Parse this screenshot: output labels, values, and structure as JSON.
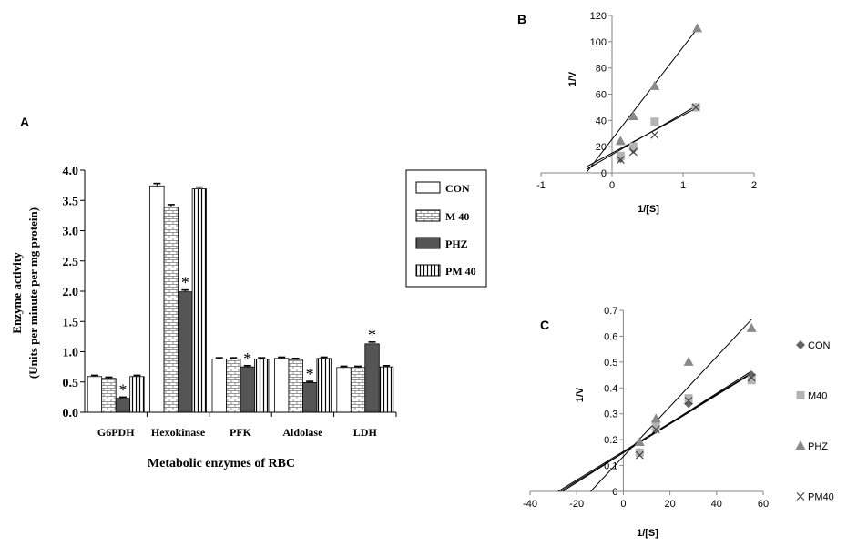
{
  "chart_data": [
    {
      "panel": "A",
      "type": "bar",
      "ylabel_line1": "Enzyme  activity",
      "ylabel_line2": "(Units per minute per mg protein)",
      "xlabel": "Metabolic enzymes of RBC",
      "categories": [
        "G6PDH",
        "Hexokinase",
        "PFK",
        "Aldolase",
        "LDH"
      ],
      "ylim": [
        0,
        4.0
      ],
      "yticks": [
        "0.0",
        "0.5",
        "1.0",
        "1.5",
        "2.0",
        "2.5",
        "3.0",
        "3.5",
        "4.0"
      ],
      "series": [
        {
          "name": "CON",
          "pattern": "white",
          "values": [
            0.59,
            3.74,
            0.88,
            0.89,
            0.74
          ],
          "errors": [
            0.02,
            0.04,
            0.02,
            0.02,
            0.02
          ]
        },
        {
          "name": "M 40",
          "pattern": "brick",
          "values": [
            0.56,
            3.39,
            0.88,
            0.87,
            0.74
          ],
          "errors": [
            0.02,
            0.04,
            0.02,
            0.02,
            0.02
          ]
        },
        {
          "name": "PHZ",
          "pattern": "dark",
          "values": [
            0.23,
            1.99,
            0.75,
            0.49,
            1.13
          ],
          "errors": [
            0.02,
            0.03,
            0.02,
            0.02,
            0.03
          ]
        },
        {
          "name": "PM 40",
          "pattern": "vlines",
          "values": [
            0.59,
            3.69,
            0.88,
            0.89,
            0.75
          ],
          "errors": [
            0.02,
            0.03,
            0.02,
            0.02,
            0.02
          ]
        }
      ],
      "significance_marker": "*",
      "significant": [
        [
          0,
          2
        ],
        [
          1,
          2
        ],
        [
          2,
          2
        ],
        [
          3,
          2
        ],
        [
          4,
          2
        ]
      ],
      "grid": false,
      "legend_position": "right"
    },
    {
      "panel": "B",
      "type": "scatter",
      "xlabel": "1/[S]",
      "ylabel": "1/V",
      "xlim": [
        -1,
        2
      ],
      "ylim": [
        0,
        120
      ],
      "xticks": [
        "-1",
        "0",
        "1",
        "2"
      ],
      "yticks": [
        "0",
        "20",
        "40",
        "60",
        "80",
        "100",
        "120"
      ],
      "series": [
        {
          "name": "CON",
          "marker": "diamond",
          "x": [
            0.12,
            0.3,
            1.18
          ],
          "y": [
            11,
            18,
            50
          ]
        },
        {
          "name": "M40",
          "marker": "square",
          "x": [
            0.12,
            0.3,
            0.6,
            1.18
          ],
          "y": [
            13,
            20,
            39,
            50
          ]
        },
        {
          "name": "PHZ",
          "marker": "triangle",
          "x": [
            0.12,
            0.3,
            0.6,
            1.2
          ],
          "y": [
            24,
            43,
            66,
            110
          ]
        },
        {
          "name": "PM40",
          "marker": "x",
          "x": [
            0.12,
            0.3,
            0.6,
            1.18
          ],
          "y": [
            10,
            16,
            29,
            50
          ]
        }
      ],
      "trendlines": [
        {
          "x": [
            -0.35,
            1.2
          ],
          "y": [
            5,
            49.8
          ]
        },
        {
          "x": [
            -0.35,
            1.2
          ],
          "y": [
            3,
            51.5
          ]
        },
        {
          "x": [
            -0.35,
            1.2
          ],
          "y": [
            1,
            110
          ]
        }
      ],
      "grid": false
    },
    {
      "panel": "C",
      "type": "scatter",
      "xlabel": "1/[S]",
      "ylabel": "1/V",
      "xlim": [
        -40,
        60
      ],
      "ylim": [
        0,
        0.7
      ],
      "xticks": [
        "-40",
        "-20",
        "0",
        "20",
        "40",
        "60"
      ],
      "yticks": [
        "0",
        "0.1",
        "0.2",
        "0.3",
        "0.4",
        "0.5",
        "0.6",
        "0.7"
      ],
      "series": [
        {
          "name": "CON",
          "marker": "diamond",
          "x": [
            7,
            14,
            28,
            55
          ],
          "y": [
            0.15,
            0.24,
            0.34,
            0.45
          ]
        },
        {
          "name": "M40",
          "marker": "square",
          "x": [
            7,
            14,
            28,
            55
          ],
          "y": [
            0.15,
            0.25,
            0.36,
            0.43
          ]
        },
        {
          "name": "PHZ",
          "marker": "triangle",
          "x": [
            7,
            14,
            28,
            55
          ],
          "y": [
            0.19,
            0.28,
            0.5,
            0.63
          ]
        },
        {
          "name": "PM40",
          "marker": "x",
          "x": [
            7,
            14,
            28,
            55
          ],
          "y": [
            0.14,
            0.24,
            0.35,
            0.44
          ]
        }
      ],
      "trendlines": [
        {
          "x": [
            -28,
            55
          ],
          "y": [
            0,
            0.458
          ]
        },
        {
          "x": [
            -27,
            55
          ],
          "y": [
            0,
            0.455
          ]
        },
        {
          "x": [
            -26,
            55
          ],
          "y": [
            0,
            0.465
          ]
        },
        {
          "x": [
            -14,
            55
          ],
          "y": [
            0,
            0.665
          ]
        }
      ],
      "grid": false,
      "legend_position": "right"
    }
  ]
}
